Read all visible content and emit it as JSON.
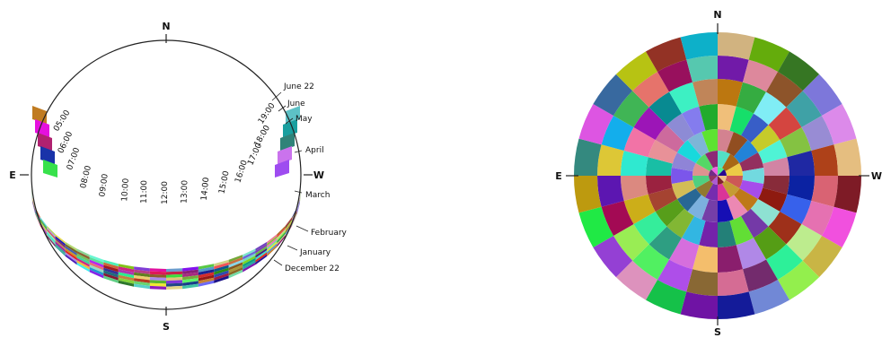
{
  "sunpath": {
    "cardinals": {
      "n": "N",
      "s": "S",
      "e": "E",
      "w": "W"
    },
    "hours": [
      "05:00",
      "06:00",
      "07:00",
      "08:00",
      "09:00",
      "10:00",
      "11:00",
      "12:00",
      "13:00",
      "14:00",
      "15:00",
      "16:00",
      "17:00",
      "18:00",
      "19:00"
    ],
    "months": [
      "June 22",
      "June",
      "May",
      "April",
      "March",
      "February",
      "January",
      "December 22"
    ]
  },
  "skydome": {
    "cardinals": {
      "n": "N",
      "s": "S",
      "e": "E",
      "w": "W"
    }
  }
}
